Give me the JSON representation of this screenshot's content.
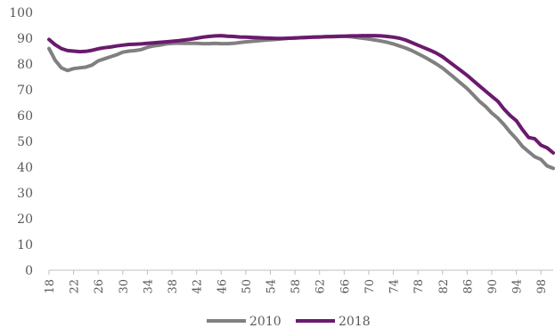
{
  "chart_data": {
    "type": "line",
    "title": "",
    "xlabel": "",
    "ylabel": "",
    "xlim": [
      18,
      100
    ],
    "ylim": [
      0,
      100
    ],
    "yticks": [
      0,
      10,
      20,
      30,
      40,
      50,
      60,
      70,
      80,
      90,
      100
    ],
    "xtick_labels": [
      "18",
      "22",
      "26",
      "30",
      "34",
      "38",
      "42",
      "46",
      "50",
      "54",
      "58",
      "62",
      "66",
      "70",
      "74",
      "78",
      "82",
      "86",
      "90",
      "94",
      "98"
    ],
    "grid": "none",
    "legend_position": "bottom",
    "x": [
      18,
      19,
      20,
      21,
      22,
      23,
      24,
      25,
      26,
      27,
      28,
      29,
      30,
      31,
      32,
      33,
      34,
      35,
      36,
      37,
      38,
      39,
      40,
      41,
      42,
      43,
      44,
      45,
      46,
      47,
      48,
      49,
      50,
      51,
      52,
      53,
      54,
      55,
      56,
      57,
      58,
      59,
      60,
      61,
      62,
      63,
      64,
      65,
      66,
      67,
      68,
      69,
      70,
      71,
      72,
      73,
      74,
      75,
      76,
      77,
      78,
      79,
      80,
      81,
      82,
      83,
      84,
      85,
      86,
      87,
      88,
      89,
      90,
      91,
      92,
      93,
      94,
      95,
      96,
      97,
      98,
      99,
      100
    ],
    "series": [
      {
        "name": "2010",
        "color": "#808080",
        "values": [
          86.0,
          81.5,
          78.5,
          77.5,
          78.2,
          78.5,
          78.8,
          79.6,
          81.2,
          82.0,
          82.8,
          83.6,
          84.6,
          85.0,
          85.2,
          85.6,
          86.5,
          87.0,
          87.3,
          87.8,
          88.0,
          88.1,
          88.0,
          88.0,
          88.0,
          87.9,
          87.9,
          88.0,
          87.9,
          87.9,
          88.0,
          88.3,
          88.6,
          88.8,
          89.0,
          89.2,
          89.4,
          89.6,
          89.8,
          90.0,
          90.1,
          90.2,
          90.3,
          90.4,
          90.5,
          90.6,
          90.7,
          90.8,
          90.8,
          90.6,
          90.3,
          90.0,
          89.7,
          89.3,
          88.9,
          88.4,
          87.8,
          87.0,
          86.2,
          85.2,
          84.0,
          82.8,
          81.4,
          80.0,
          78.4,
          76.5,
          74.5,
          72.5,
          70.5,
          68.0,
          65.5,
          63.5,
          61.0,
          59.0,
          56.5,
          53.5,
          51.0,
          48.0,
          46.0,
          44.0,
          43.0,
          40.5,
          39.5
        ]
      },
      {
        "name": "2018",
        "color": "#6a1a6e",
        "values": [
          89.5,
          87.5,
          86.0,
          85.2,
          85.0,
          84.8,
          84.9,
          85.3,
          85.9,
          86.3,
          86.6,
          87.0,
          87.3,
          87.6,
          87.7,
          87.8,
          88.0,
          88.2,
          88.4,
          88.6,
          88.8,
          89.0,
          89.3,
          89.6,
          90.0,
          90.4,
          90.7,
          90.9,
          91.0,
          90.8,
          90.7,
          90.5,
          90.4,
          90.3,
          90.2,
          90.1,
          90.0,
          89.9,
          89.9,
          90.0,
          90.1,
          90.2,
          90.3,
          90.4,
          90.5,
          90.6,
          90.6,
          90.7,
          90.8,
          90.9,
          90.9,
          91.0,
          91.0,
          91.0,
          90.9,
          90.7,
          90.4,
          90.0,
          89.3,
          88.3,
          87.3,
          86.3,
          85.3,
          84.2,
          82.8,
          81.0,
          79.2,
          77.4,
          75.6,
          73.5,
          71.5,
          69.5,
          67.5,
          65.5,
          62.5,
          60.0,
          58.0,
          54.5,
          51.5,
          51.0,
          48.5,
          47.5,
          45.5
        ]
      }
    ]
  }
}
